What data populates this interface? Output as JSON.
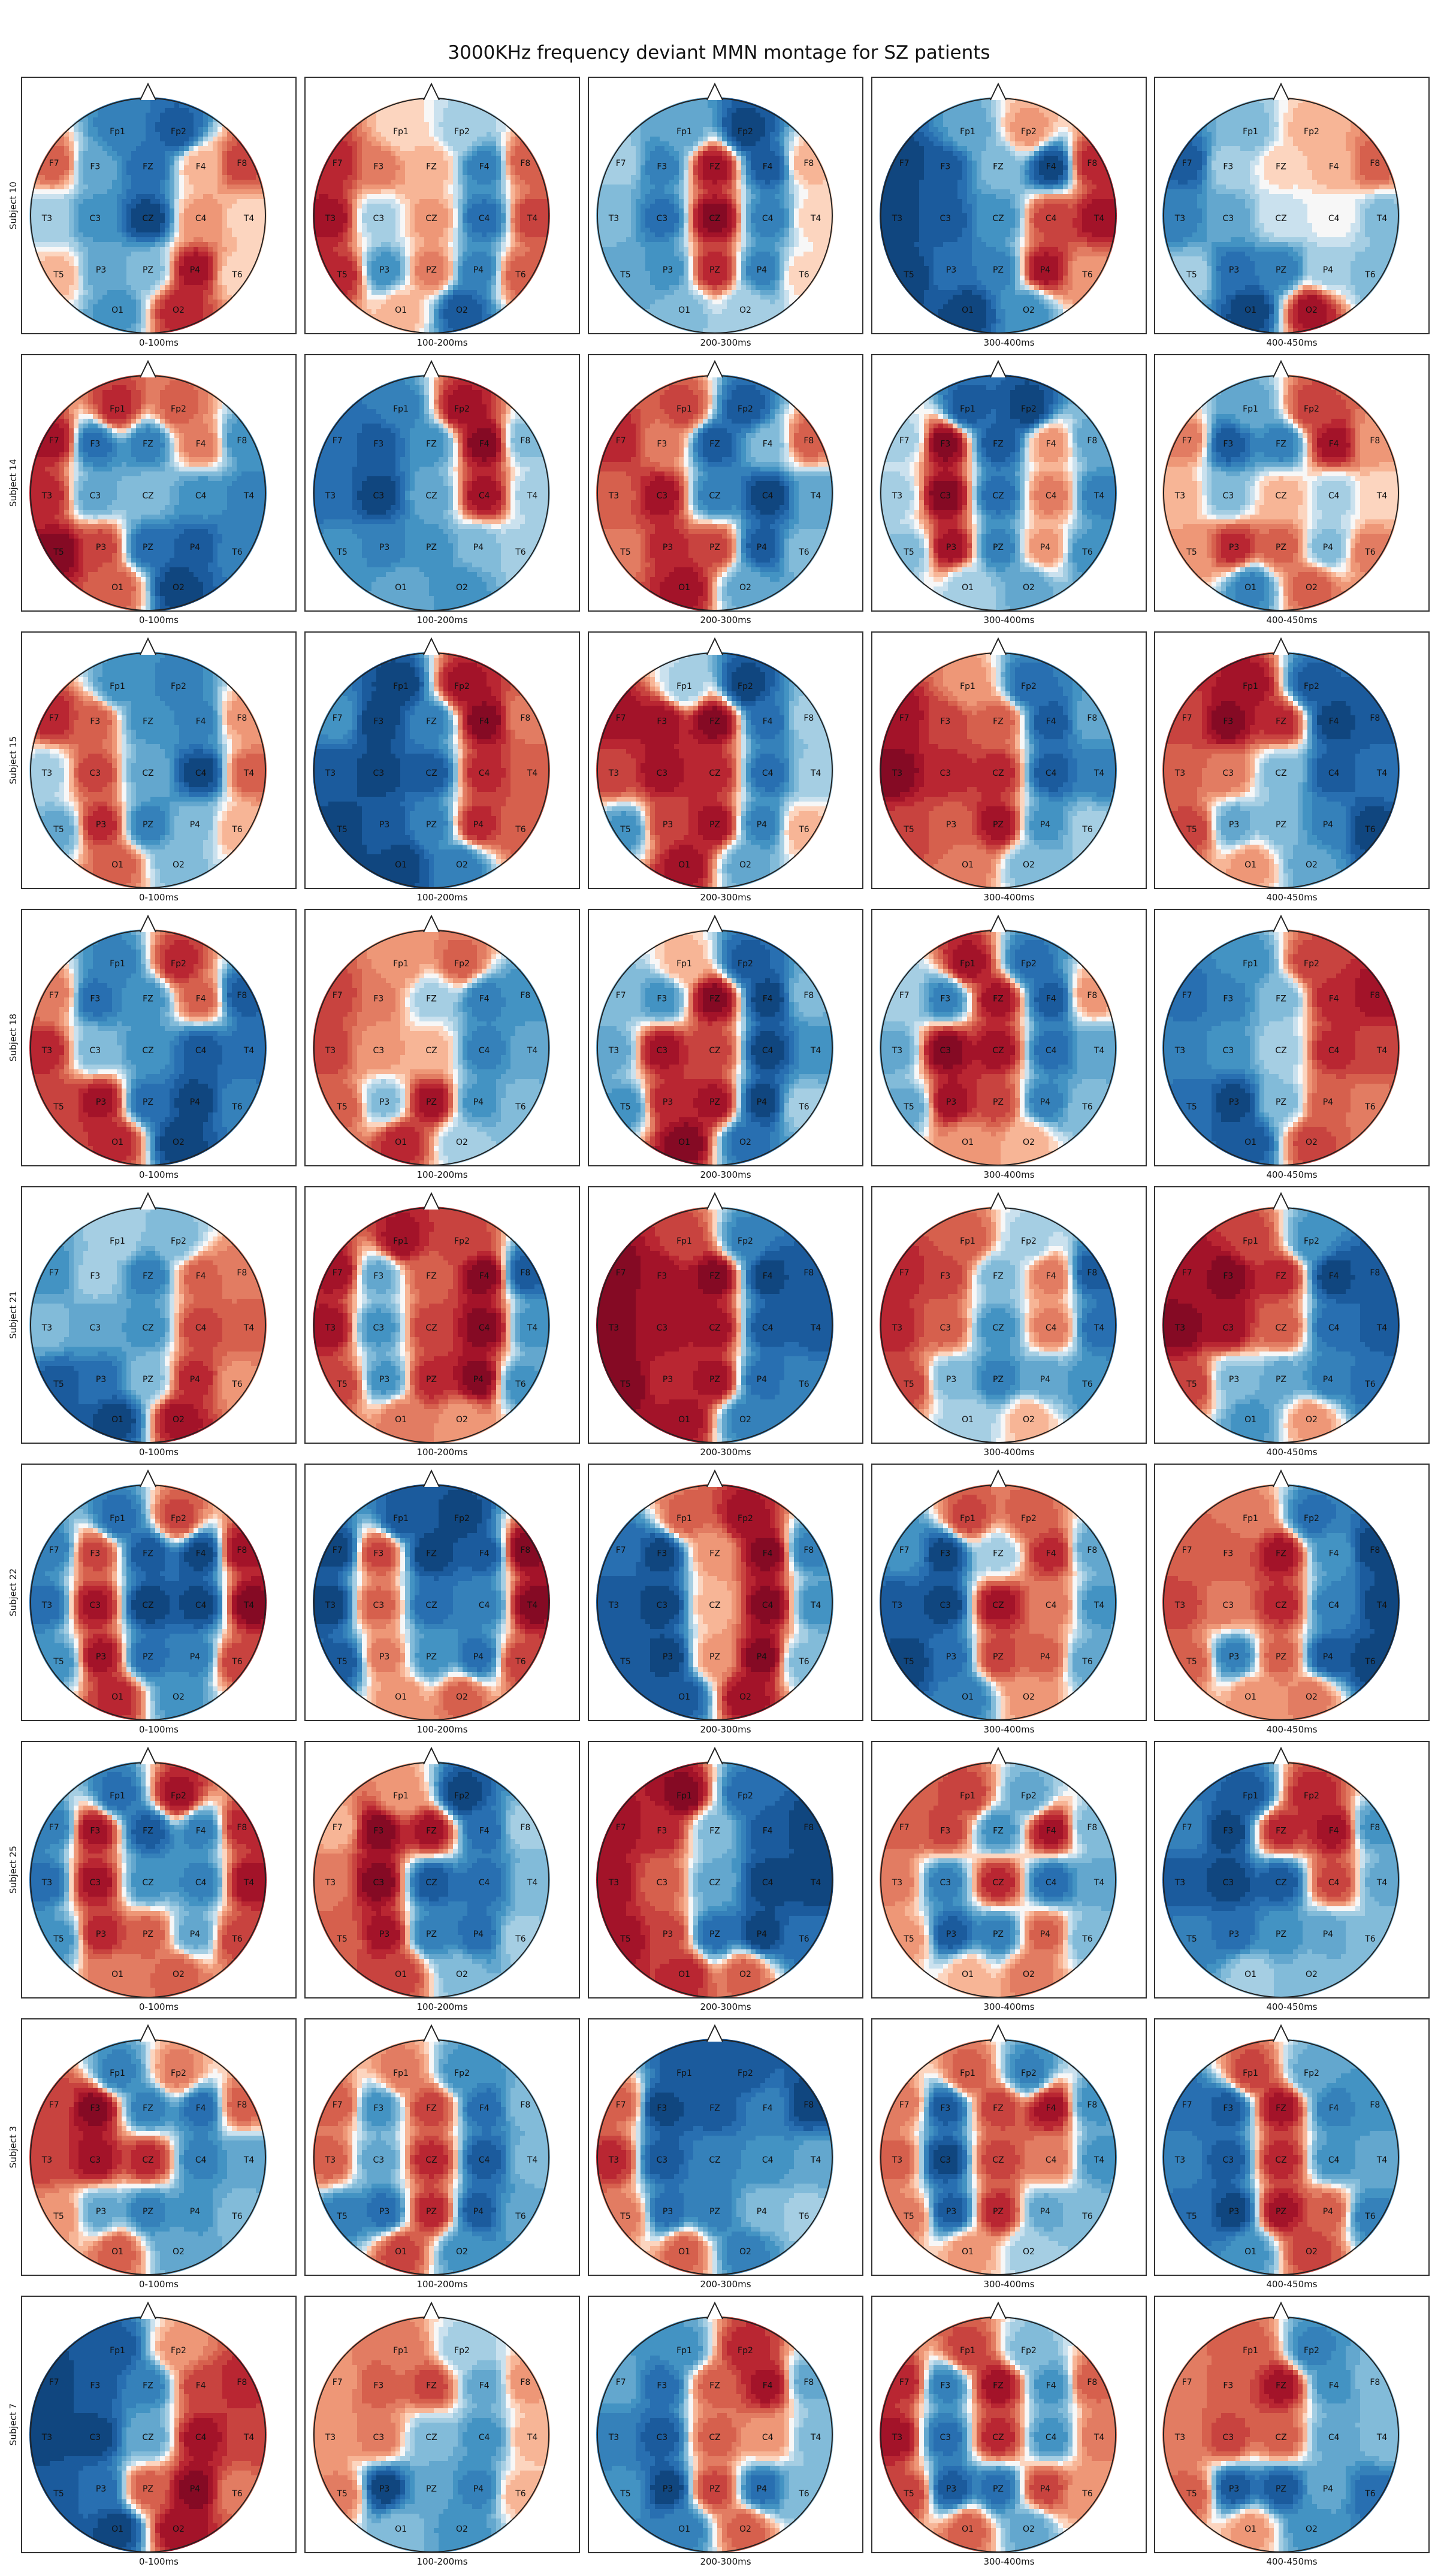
{
  "chart_data": {
    "type": "heatmap",
    "title": "3000KHz frequency deviant MMN montage for SZ patients",
    "colormap": "RdBu_r (red = positive, blue = negative)",
    "time_windows": [
      "0-100ms",
      "100-200ms",
      "200-300ms",
      "300-400ms",
      "400-450ms"
    ],
    "subjects": [
      "Subject 10",
      "Subject 14",
      "Subject 15",
      "Subject 18",
      "Subject 21",
      "Subject 22",
      "Subject 25",
      "Subject 3",
      "Subject 7"
    ],
    "electrodes": [
      "Fp1",
      "Fp2",
      "F7",
      "F3",
      "FZ",
      "F4",
      "F8",
      "T3",
      "C3",
      "CZ",
      "C4",
      "T4",
      "T5",
      "P3",
      "PZ",
      "P4",
      "T6",
      "O1",
      "O2"
    ],
    "values": [
      [
        [
          -0.6,
          -0.8,
          0.5,
          -0.4,
          -0.7,
          0.2,
          0.6,
          -0.2,
          -0.5,
          -0.9,
          0.3,
          0.1,
          0.2,
          -0.4,
          -0.3,
          0.8,
          0.1,
          -0.5,
          0.7
        ],
        [
          0.1,
          -0.2,
          0.7,
          0.4,
          0.2,
          -0.6,
          0.5,
          0.8,
          -0.2,
          0.3,
          -0.7,
          0.6,
          0.7,
          -0.5,
          0.4,
          -0.6,
          0.5,
          0.2,
          -0.8
        ],
        [
          -0.4,
          -0.9,
          -0.2,
          -0.6,
          0.8,
          -0.8,
          0.2,
          -0.3,
          -0.7,
          0.9,
          -0.6,
          0.1,
          -0.4,
          -0.5,
          0.7,
          -0.6,
          0.1,
          -0.3,
          -0.2
        ],
        [
          -0.4,
          0.3,
          -0.9,
          -0.8,
          -0.3,
          -0.9,
          0.7,
          -0.9,
          -0.8,
          -0.5,
          0.6,
          0.8,
          -0.9,
          -0.7,
          -0.6,
          0.8,
          0.3,
          -0.9,
          -0.5
        ],
        [
          -0.3,
          0.2,
          -0.8,
          -0.2,
          0.1,
          0.2,
          0.5,
          -0.6,
          -0.4,
          -0.1,
          0.0,
          -0.3,
          -0.2,
          -0.7,
          -0.6,
          -0.2,
          -0.3,
          -0.9,
          0.8
        ]
      ],
      [
        [
          0.7,
          0.5,
          0.8,
          -0.7,
          -0.6,
          0.4,
          -0.5,
          0.7,
          -0.4,
          -0.3,
          -0.5,
          -0.6,
          0.9,
          0.6,
          -0.7,
          -0.8,
          -0.6,
          0.5,
          -0.9
        ],
        [
          -0.6,
          0.8,
          -0.7,
          -0.8,
          -0.5,
          0.9,
          -0.3,
          -0.7,
          -0.9,
          -0.4,
          0.8,
          -0.2,
          -0.5,
          -0.6,
          -0.5,
          -0.3,
          -0.2,
          -0.4,
          -0.5
        ],
        [
          0.6,
          -0.8,
          0.7,
          0.4,
          -0.8,
          -0.3,
          0.5,
          0.5,
          0.8,
          -0.6,
          -0.9,
          -0.4,
          0.4,
          0.7,
          0.6,
          -0.8,
          -0.3,
          0.8,
          -0.4
        ],
        [
          -0.8,
          -0.9,
          -0.2,
          0.9,
          -0.8,
          0.3,
          -0.4,
          -0.2,
          0.9,
          -0.7,
          0.4,
          -0.6,
          -0.3,
          0.8,
          -0.6,
          0.3,
          -0.5,
          -0.2,
          -0.4
        ],
        [
          -0.4,
          0.6,
          0.4,
          -0.8,
          -0.6,
          0.8,
          0.3,
          0.2,
          -0.3,
          0.2,
          -0.2,
          0.1,
          0.3,
          0.7,
          0.5,
          -0.3,
          0.4,
          -0.6,
          0.5
        ]
      ],
      [
        [
          -0.5,
          -0.6,
          0.7,
          0.5,
          -0.5,
          -0.6,
          0.3,
          -0.2,
          0.6,
          -0.4,
          -0.9,
          0.5,
          -0.4,
          0.7,
          -0.6,
          -0.3,
          0.2,
          0.5,
          -0.3
        ],
        [
          -0.9,
          0.8,
          -0.5,
          -0.9,
          -0.6,
          0.9,
          0.4,
          -0.8,
          -0.9,
          -0.8,
          0.7,
          0.5,
          -0.9,
          -0.8,
          -0.6,
          0.7,
          0.5,
          -0.9,
          -0.6
        ],
        [
          -0.2,
          -0.9,
          0.8,
          0.8,
          0.9,
          -0.7,
          -0.2,
          0.6,
          0.8,
          0.7,
          -0.7,
          -0.2,
          -0.5,
          0.6,
          0.8,
          -0.6,
          0.2,
          0.8,
          -0.4
        ],
        [
          0.3,
          -0.7,
          0.8,
          0.6,
          0.5,
          -0.8,
          -0.4,
          0.9,
          0.7,
          0.7,
          -0.8,
          -0.6,
          0.6,
          0.5,
          0.8,
          -0.5,
          -0.2,
          0.4,
          -0.3
        ],
        [
          0.8,
          -0.8,
          0.6,
          0.9,
          0.7,
          -0.9,
          -0.8,
          0.5,
          0.4,
          -0.3,
          -0.8,
          -0.7,
          0.6,
          -0.4,
          -0.3,
          -0.6,
          -0.9,
          0.3,
          -0.4
        ]
      ],
      [
        [
          -0.6,
          0.7,
          0.4,
          -0.7,
          -0.5,
          0.5,
          -0.8,
          0.7,
          -0.3,
          -0.5,
          -0.8,
          -0.7,
          0.6,
          0.8,
          -0.7,
          -0.9,
          -0.6,
          0.7,
          -0.9
        ],
        [
          0.3,
          0.5,
          0.6,
          0.4,
          -0.2,
          -0.6,
          -0.5,
          0.6,
          0.3,
          0.2,
          -0.6,
          -0.4,
          0.5,
          -0.3,
          0.8,
          -0.5,
          -0.3,
          0.7,
          -0.2
        ],
        [
          0.2,
          -0.8,
          -0.3,
          -0.5,
          0.9,
          -0.9,
          -0.3,
          -0.4,
          0.8,
          0.6,
          -0.9,
          -0.5,
          -0.5,
          0.7,
          0.8,
          -0.9,
          -0.2,
          0.9,
          -0.7
        ],
        [
          0.8,
          -0.7,
          -0.2,
          -0.6,
          0.8,
          -0.8,
          0.3,
          -0.4,
          0.9,
          0.8,
          -0.7,
          -0.4,
          -0.4,
          0.8,
          0.6,
          -0.6,
          -0.3,
          0.3,
          0.2
        ],
        [
          -0.5,
          0.6,
          -0.7,
          -0.6,
          -0.3,
          0.7,
          0.8,
          -0.6,
          -0.5,
          -0.2,
          0.7,
          0.6,
          -0.7,
          -0.9,
          -0.3,
          0.5,
          0.4,
          -0.8,
          0.6
        ]
      ],
      [
        [
          -0.2,
          -0.3,
          -0.5,
          -0.2,
          -0.6,
          0.5,
          0.4,
          -0.3,
          -0.4,
          -0.5,
          0.6,
          0.5,
          -0.8,
          -0.7,
          -0.3,
          0.7,
          0.3,
          -0.9,
          0.8
        ],
        [
          0.8,
          0.6,
          0.8,
          -0.4,
          0.5,
          0.9,
          -0.8,
          0.8,
          -0.5,
          0.6,
          0.9,
          -0.5,
          0.6,
          -0.5,
          0.7,
          0.9,
          -0.5,
          0.4,
          0.3
        ],
        [
          0.6,
          -0.6,
          0.9,
          0.8,
          0.9,
          -0.9,
          -0.8,
          0.9,
          0.8,
          0.8,
          -0.8,
          -0.8,
          0.9,
          0.7,
          0.8,
          -0.7,
          -0.6,
          0.8,
          -0.6
        ],
        [
          0.5,
          -0.2,
          0.7,
          0.6,
          -0.3,
          0.4,
          -0.8,
          0.7,
          0.5,
          -0.5,
          0.4,
          -0.7,
          0.6,
          -0.3,
          -0.6,
          -0.4,
          -0.5,
          -0.2,
          0.2
        ],
        [
          0.6,
          -0.5,
          0.8,
          0.9,
          0.7,
          -0.9,
          -0.8,
          0.9,
          0.8,
          0.5,
          -0.7,
          -0.8,
          0.6,
          -0.3,
          -0.4,
          -0.6,
          -0.7,
          -0.5,
          0.3
        ]
      ],
      [
        [
          -0.7,
          0.6,
          -0.6,
          0.6,
          -0.8,
          -0.9,
          0.8,
          -0.7,
          0.8,
          -0.9,
          -0.9,
          0.9,
          -0.5,
          0.8,
          -0.7,
          -0.6,
          0.6,
          0.7,
          -0.5
        ],
        [
          -0.8,
          -0.9,
          -0.9,
          0.6,
          -0.9,
          -0.8,
          0.9,
          -0.9,
          0.5,
          -0.7,
          -0.6,
          0.9,
          -0.8,
          0.4,
          -0.5,
          -0.7,
          0.6,
          0.3,
          0.5
        ],
        [
          0.5,
          0.8,
          -0.7,
          -0.9,
          0.3,
          0.9,
          -0.6,
          -0.8,
          -0.9,
          0.2,
          0.9,
          -0.5,
          -0.8,
          -0.9,
          0.3,
          0.9,
          -0.3,
          -0.8,
          0.8
        ],
        [
          0.6,
          0.5,
          -0.5,
          -0.9,
          -0.2,
          0.7,
          -0.4,
          -0.8,
          -0.9,
          0.8,
          0.4,
          -0.5,
          -0.9,
          -0.7,
          0.6,
          0.5,
          -0.4,
          -0.6,
          0.3
        ],
        [
          0.4,
          -0.7,
          0.5,
          0.5,
          0.8,
          -0.5,
          -0.9,
          0.6,
          0.4,
          0.7,
          -0.6,
          -0.9,
          0.5,
          -0.6,
          0.5,
          -0.8,
          -0.9,
          0.3,
          0.4
        ]
      ],
      [
        [
          -0.7,
          0.8,
          -0.6,
          0.8,
          -0.8,
          -0.6,
          0.7,
          -0.7,
          0.8,
          -0.5,
          -0.6,
          0.8,
          -0.5,
          0.7,
          0.5,
          -0.4,
          0.6,
          0.4,
          0.5
        ],
        [
          0.3,
          -0.9,
          0.2,
          0.9,
          0.8,
          -0.7,
          -0.2,
          0.4,
          0.9,
          -0.8,
          -0.7,
          -0.3,
          0.5,
          0.8,
          -0.6,
          -0.7,
          -0.2,
          0.6,
          -0.3
        ],
        [
          0.9,
          -0.7,
          0.8,
          0.7,
          -0.3,
          -0.8,
          -0.9,
          0.8,
          0.5,
          -0.4,
          -0.9,
          -0.9,
          0.8,
          0.6,
          -0.7,
          -0.9,
          -0.7,
          0.7,
          0.5
        ],
        [
          0.6,
          -0.4,
          0.5,
          0.6,
          -0.5,
          0.8,
          -0.3,
          0.4,
          -0.6,
          0.7,
          -0.7,
          -0.4,
          0.3,
          -0.8,
          -0.6,
          0.5,
          -0.3,
          0.2,
          0.4
        ],
        [
          -0.8,
          0.7,
          -0.6,
          -0.9,
          0.7,
          0.8,
          -0.5,
          -0.8,
          -0.9,
          -0.8,
          0.6,
          -0.4,
          -0.6,
          -0.7,
          -0.5,
          -0.4,
          -0.3,
          -0.2,
          -0.3
        ]
      ],
      [
        [
          -0.6,
          0.4,
          0.6,
          0.9,
          -0.6,
          -0.7,
          0.5,
          0.6,
          0.8,
          0.7,
          -0.6,
          -0.4,
          0.3,
          -0.4,
          -0.6,
          -0.5,
          -0.3,
          0.5,
          -0.4
        ],
        [
          0.4,
          -0.5,
          0.5,
          -0.5,
          0.6,
          -0.7,
          -0.3,
          0.5,
          -0.4,
          0.7,
          -0.8,
          -0.3,
          -0.6,
          -0.7,
          0.7,
          -0.8,
          -0.4,
          0.6,
          -0.5
        ],
        [
          -0.8,
          -0.8,
          0.5,
          -0.9,
          -0.8,
          -0.6,
          -0.9,
          0.7,
          -0.8,
          -0.6,
          -0.5,
          -0.4,
          0.4,
          -0.7,
          -0.6,
          -0.3,
          -0.2,
          0.5,
          -0.6
        ],
        [
          0.5,
          -0.6,
          0.4,
          -0.8,
          0.6,
          0.8,
          -0.5,
          0.5,
          -0.9,
          0.6,
          0.4,
          -0.5,
          0.4,
          -0.8,
          0.7,
          -0.4,
          -0.3,
          0.3,
          -0.2
        ],
        [
          0.6,
          -0.4,
          -0.7,
          -0.8,
          0.8,
          -0.6,
          -0.5,
          -0.6,
          -0.8,
          0.7,
          -0.5,
          -0.4,
          -0.7,
          -0.9,
          0.8,
          0.5,
          -0.6,
          -0.5,
          0.6
        ]
      ],
      [
        [
          -0.8,
          0.3,
          -0.9,
          -0.8,
          -0.6,
          0.6,
          0.7,
          -0.9,
          -0.9,
          -0.4,
          0.8,
          0.6,
          -0.8,
          -0.7,
          0.5,
          0.9,
          0.4,
          -0.9,
          0.8
        ],
        [
          0.4,
          -0.2,
          0.3,
          0.5,
          0.6,
          -0.4,
          0.3,
          0.3,
          0.4,
          -0.3,
          -0.5,
          0.2,
          0.4,
          -0.9,
          -0.4,
          -0.6,
          0.2,
          -0.3,
          -0.5
        ],
        [
          -0.5,
          0.7,
          -0.4,
          -0.7,
          0.5,
          0.8,
          -0.4,
          -0.6,
          -0.8,
          0.5,
          0.3,
          -0.3,
          -0.5,
          -0.9,
          0.6,
          -0.7,
          -0.3,
          -0.6,
          0.5
        ],
        [
          0.6,
          -0.3,
          0.7,
          -0.6,
          0.8,
          -0.5,
          0.5,
          0.8,
          -0.7,
          0.7,
          -0.5,
          0.4,
          0.6,
          -0.8,
          -0.7,
          0.6,
          0.3,
          0.5,
          -0.4
        ],
        [
          0.5,
          -0.6,
          0.4,
          0.5,
          0.8,
          -0.5,
          -0.3,
          0.4,
          0.6,
          0.5,
          -0.4,
          -0.3,
          0.5,
          -0.8,
          -0.8,
          -0.4,
          -0.7,
          0.3,
          -0.5
        ]
      ]
    ]
  }
}
